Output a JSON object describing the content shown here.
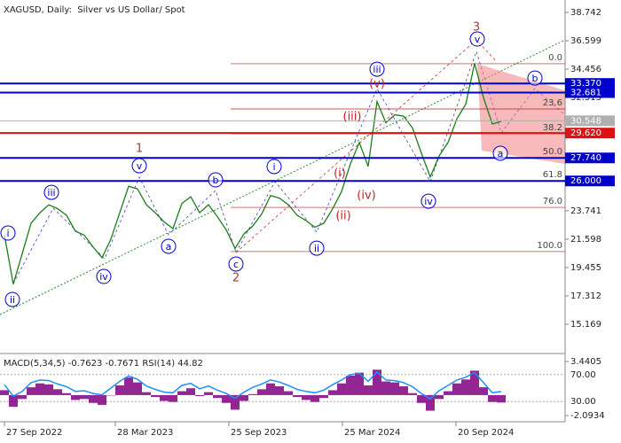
{
  "chart_data": [
    {
      "type": "line",
      "title": "XAGUSD, Daily:  Silver vs US Dollar/ Spot",
      "color": "#1a7f1a",
      "values": [
        21.9,
        18.2,
        20.5,
        22.8,
        23.6,
        24.2,
        23.9,
        23.4,
        22.2,
        21.9,
        21.0,
        20.2,
        21.6,
        23.6,
        25.6,
        25.4,
        24.2,
        23.6,
        22.9,
        22.4,
        24.3,
        24.8,
        23.6,
        24.2,
        23.3,
        22.3,
        20.9,
        22.0,
        22.6,
        23.5,
        24.9,
        24.7,
        24.2,
        23.4,
        23.0,
        22.5,
        22.8,
        23.9,
        25.2,
        27.3,
        28.9,
        27.1,
        32.0,
        30.4,
        31.0,
        30.9,
        30.0,
        28.1,
        26.3,
        27.9,
        28.9,
        30.7,
        31.8,
        34.9,
        32.3,
        30.3,
        30.5
      ],
      "xlim": [
        -0.5,
        63.2
      ],
      "xticks": [
        {
          "value": 0,
          "label": "27 Sep 2022"
        },
        {
          "value": 12.5,
          "label": "28 Mar 2023"
        },
        {
          "value": 25.3,
          "label": "25 Sep 2023"
        },
        {
          "value": 38.1,
          "label": "25 Mar 2024"
        },
        {
          "value": 50.9,
          "label": "20 Sep 2024"
        }
      ],
      "ylim": [
        13.02,
        39.68
      ],
      "yticks": [
        38.742,
        36.599,
        34.456,
        32.313,
        23.741,
        21.598,
        19.455,
        17.312,
        15.169
      ],
      "levels": [
        {
          "value": 33.37,
          "label": "33.370",
          "color": "#0000cc"
        },
        {
          "value": 32.681,
          "label": "32.681",
          "color": "#0000cc"
        },
        {
          "value": 30.548,
          "label": "30.548",
          "color": "#b0b0b0"
        },
        {
          "value": 29.62,
          "label": "29.620",
          "color": "#dd1111"
        },
        {
          "value": 27.74,
          "label": "27.740",
          "color": "#0000cc"
        },
        {
          "value": 26.0,
          "label": "26.000",
          "color": "#0000cc"
        }
      ],
      "fib_color": "#b22222",
      "fib_levels": [
        {
          "label": "0.0",
          "price": 34.86
        },
        {
          "label": "23.6",
          "price": 31.44
        },
        {
          "label": "38.2",
          "price": 29.57
        },
        {
          "label": "50.0",
          "price": 27.76
        },
        {
          "label": "61.8",
          "price": 26.0
        },
        {
          "label": "76.0",
          "price": 24.0
        },
        {
          "label": "100.0",
          "price": 20.66
        }
      ],
      "annotations": [
        {
          "text": "i",
          "x": 0.4,
          "y": 22.06,
          "color": "#0000cc",
          "circled": true
        },
        {
          "text": "ii",
          "x": 0.9,
          "y": 17.04,
          "color": "#0000cc",
          "circled": true
        },
        {
          "text": "iii",
          "x": 5.3,
          "y": 25.14,
          "color": "#0000cc",
          "circled": true
        },
        {
          "text": "iv",
          "x": 11.2,
          "y": 18.78,
          "color": "#0000cc",
          "circled": true
        },
        {
          "text": "v",
          "x": 15.2,
          "y": 27.15,
          "color": "#0000cc",
          "circled": true
        },
        {
          "text": "1",
          "x": 15.2,
          "y": 28.49,
          "color": "#a0403a",
          "circled": false
        },
        {
          "text": "a",
          "x": 18.5,
          "y": 21.06,
          "color": "#0000cc",
          "circled": true
        },
        {
          "text": "b",
          "x": 23.8,
          "y": 26.08,
          "color": "#0000cc",
          "circled": true
        },
        {
          "text": "c",
          "x": 26.1,
          "y": 19.72,
          "color": "#0000cc",
          "circled": true
        },
        {
          "text": "2",
          "x": 26.1,
          "y": 18.71,
          "color": "#a0403a",
          "circled": false
        },
        {
          "text": "i",
          "x": 30.4,
          "y": 27.09,
          "color": "#0000cc",
          "circled": true
        },
        {
          "text": "ii",
          "x": 35.2,
          "y": 20.92,
          "color": "#0000cc",
          "circled": true
        },
        {
          "text": "(i)",
          "x": 37.8,
          "y": 26.62,
          "color": "#cc2020",
          "circled": false
        },
        {
          "text": "(ii)",
          "x": 38.2,
          "y": 23.4,
          "color": "#cc2020",
          "circled": false
        },
        {
          "text": "(iii)",
          "x": 39.2,
          "y": 30.9,
          "color": "#cc2020",
          "circled": false
        },
        {
          "text": "(iv)",
          "x": 40.8,
          "y": 24.94,
          "color": "#cc2020",
          "circled": false
        },
        {
          "text": "(v)",
          "x": 42,
          "y": 33.38,
          "color": "#cc2020",
          "circled": false
        },
        {
          "text": "iii",
          "x": 42,
          "y": 34.45,
          "color": "#0000cc",
          "circled": true
        },
        {
          "text": "iv",
          "x": 47.8,
          "y": 24.47,
          "color": "#0000cc",
          "circled": true
        },
        {
          "text": "v",
          "x": 53.3,
          "y": 36.73,
          "color": "#0000cc",
          "circled": true
        },
        {
          "text": "3",
          "x": 53.2,
          "y": 37.67,
          "color": "#a0403a",
          "circled": false
        },
        {
          "text": "a",
          "x": 55.9,
          "y": 28.09,
          "color": "#0000cc",
          "circled": true
        },
        {
          "text": "b",
          "x": 59.8,
          "y": 33.78,
          "color": "#0000cc",
          "circled": true
        }
      ]
    },
    {
      "type": "bar",
      "title": "MACD(5,34,5) -0.7623 -0.7671 RSI(14) 44.82",
      "series": [
        {
          "color": "#800080",
          "values": [
            0.5,
            -1.2,
            -0.4,
            0.8,
            1.2,
            1.1,
            0.6,
            0.2,
            -0.5,
            -0.4,
            -0.8,
            -1.0,
            0.0,
            1.0,
            1.8,
            1.3,
            0.3,
            -0.2,
            -0.6,
            -0.7,
            0.4,
            0.7,
            -0.1,
            0.3,
            -0.3,
            -0.8,
            -1.5,
            -0.6,
            0.1,
            0.6,
            1.2,
            0.9,
            0.4,
            -0.2,
            -0.5,
            -0.7,
            -0.3,
            0.5,
            1.2,
            2.0,
            2.3,
            1.0,
            2.6,
            1.4,
            1.3,
            0.9,
            0.2,
            -0.8,
            -1.6,
            -0.4,
            0.4,
            1.2,
            1.6,
            2.5,
            0.8,
            -0.7,
            -0.7623
          ]
        },
        {
          "color": "#1e90ff",
          "axis": "y2",
          "values": [
            55,
            38,
            45,
            58,
            62,
            61,
            56,
            52,
            45,
            46,
            42,
            40,
            50,
            60,
            68,
            63,
            53,
            48,
            44,
            43,
            54,
            57,
            49,
            53,
            47,
            42,
            35,
            44,
            51,
            56,
            62,
            59,
            54,
            48,
            45,
            43,
            47,
            55,
            62,
            70,
            72,
            60,
            74,
            62,
            61,
            58,
            52,
            42,
            34,
            46,
            54,
            62,
            66,
            73,
            58,
            43,
            44.82
          ]
        }
      ],
      "ylim": [
        -2.73,
        4.17
      ],
      "yticks": [
        3.4405,
        -2.0934
      ],
      "y2lim": [
        0,
        100
      ],
      "y2ticks": [
        {
          "value": 70,
          "label": "70.00"
        },
        {
          "value": 30,
          "label": "30.00"
        }
      ]
    }
  ]
}
